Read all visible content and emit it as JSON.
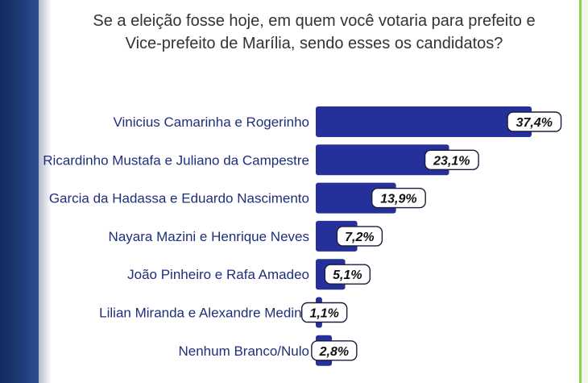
{
  "question": {
    "line1": "Se a eleição fosse hoje, em quem você votaria para prefeito e",
    "line2": "Vice-prefeito de Marília, sendo esses os candidatos?"
  },
  "colors": {
    "bar": "#25309a",
    "label": "#1f2f7a",
    "pill_border": "#1c1c3a",
    "accent_border": "#8fd04a",
    "side_band": "#1e3a78"
  },
  "chart_data": {
    "type": "bar",
    "orientation": "horizontal",
    "categories": [
      "Vinicius Camarinha e Rogerinho",
      "Ricardinho Mustafa e Juliano da Campestre",
      "Garcia da Hadassa e Eduardo Nascimento",
      "Nayara Mazini e Henrique Neves",
      "João Pinheiro e Rafa Amadeo",
      "Lilian Miranda e Alexandre Medina",
      "Nenhum Branco/Nulo"
    ],
    "values": [
      37.4,
      23.1,
      13.9,
      7.2,
      5.1,
      1.1,
      2.8
    ],
    "value_labels": [
      "37,4%",
      "23,1%",
      "13,9%",
      "7,2%",
      "5,1%",
      "1,1%",
      "2,8%"
    ],
    "unit": "%",
    "xlim": [
      0,
      37.4
    ]
  }
}
